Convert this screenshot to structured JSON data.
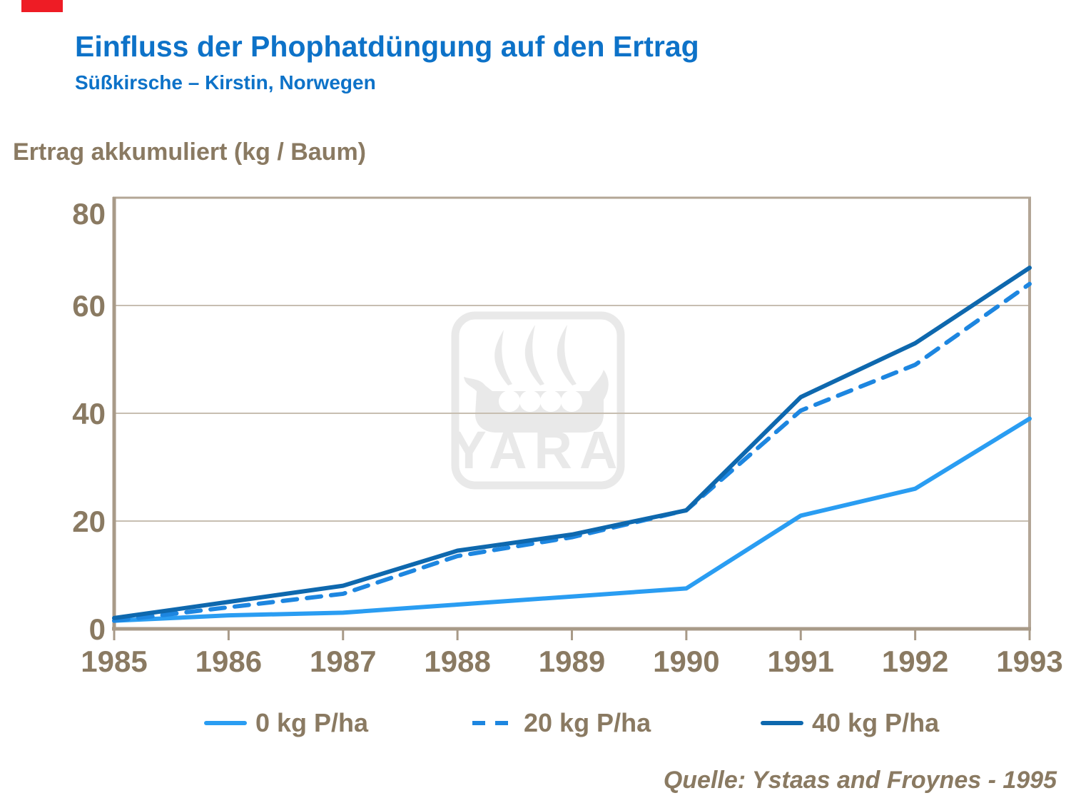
{
  "slide": {
    "title": "Einfluss der Phophatdüngung auf den Ertrag",
    "subtitle": "Süßkirsche – Kirstin, Norwegen",
    "source": "Quelle:  Ystaas and Froynes - 1995",
    "colors": {
      "title_blue": "#0d72c8",
      "text_tan": "#8a7a62",
      "axis_tan": "#a89a88",
      "frame_tan": "#b3a696",
      "gridline_tan": "#c7beb1",
      "accent_red": "#ee1c25",
      "watermark_gray": "#e9e9e9"
    }
  },
  "watermark": {
    "text": "YARA"
  },
  "chart_data": {
    "type": "line",
    "title": "Einfluss der Phophatdüngung auf den Ertrag",
    "subtitle": "Süßkirsche – Kirstin, Norwegen",
    "ylabel": "Ertrag akkumuliert (kg / Baum)",
    "xlabel": "",
    "categories": [
      "1985",
      "1986",
      "1987",
      "1988",
      "1989",
      "1990",
      "1991",
      "1992",
      "1993"
    ],
    "series": [
      {
        "name": "0 kg P/ha",
        "color": "#2a9df2",
        "dashed": false,
        "values": [
          1.5,
          2.5,
          3,
          4.5,
          6,
          7.5,
          21,
          26,
          39
        ]
      },
      {
        "name": "20 kg P/ha",
        "color": "#1d86e0",
        "dashed": true,
        "values": [
          1.5,
          4,
          6.5,
          13.5,
          17,
          22,
          40.5,
          49,
          64
        ]
      },
      {
        "name": "40 kg P/ha",
        "color": "#0e68ae",
        "dashed": false,
        "values": [
          2,
          5,
          8,
          14.5,
          17.5,
          22,
          43,
          53,
          67
        ]
      }
    ],
    "ylim": [
      0,
      80
    ],
    "yticks": [
      0,
      20,
      40,
      60,
      80
    ],
    "grid": "horizontal",
    "legend_position": "bottom",
    "source": "Quelle:  Ystaas and Froynes - 1995"
  }
}
